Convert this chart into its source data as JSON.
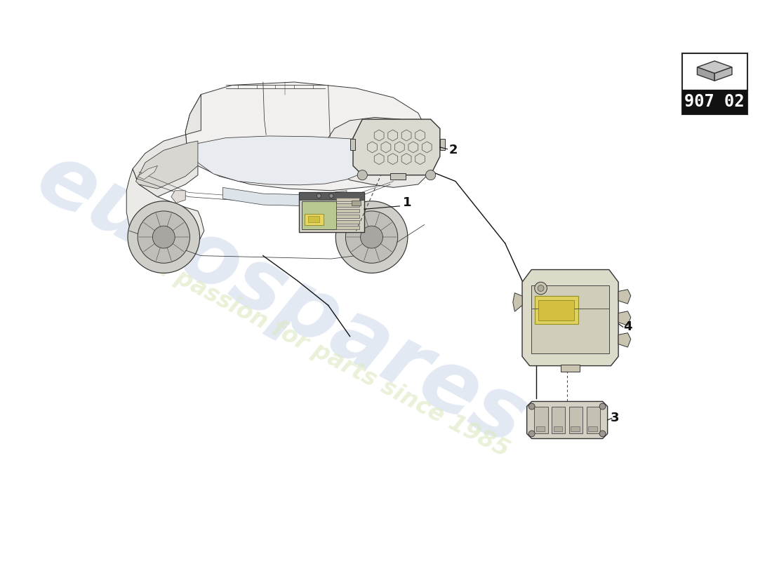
{
  "bg_color": "#ffffff",
  "watermark_line1": "eurospares",
  "watermark_line2": "a passion for parts since 1985",
  "part_number_box": "907 02",
  "line_color": "#2a2a2a",
  "part_fill": "#e8e4d8",
  "part_edge": "#333333",
  "wm_color1": "#c8d4e8",
  "wm_color2": "#dce8c0",
  "label_color": "#111111",
  "car_color": "#333333",
  "car_lw": 0.7,
  "part_lw": 0.9,
  "yellow_fill": "#e8d870",
  "yellow_edge": "#a09830"
}
